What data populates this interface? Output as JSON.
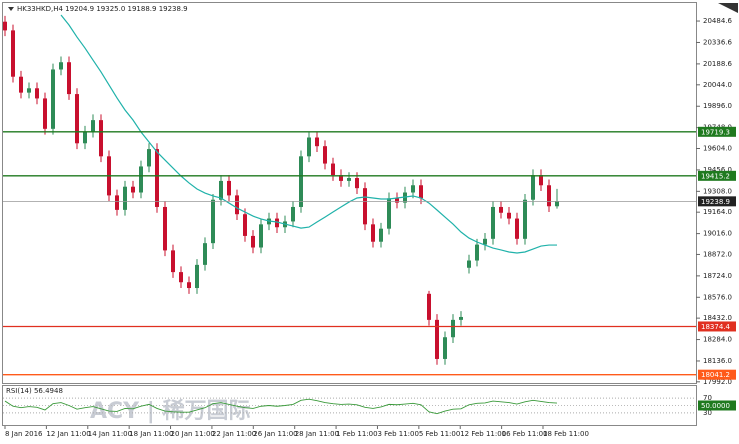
{
  "chart_data": {
    "type": "candlestick",
    "title": "HK33HKD,H4  19204.9 19325.0 19188.9 19238.9",
    "watermark": "ACY | 稀万国际",
    "up_color": "#2e8b57",
    "down_color": "#c8102e",
    "ylim": [
      17970,
      20630
    ],
    "yticks": [
      20484.6,
      20336.6,
      20188.6,
      {
        "value": 20044,
        "label": "20044.0"
      },
      {
        "value": 19896,
        "label": "19896.0"
      },
      {
        "value": 19748,
        "label": "19748.0"
      },
      {
        "value": 19604,
        "label": "19604.0"
      },
      {
        "value": 19456,
        "label": "19456.0"
      },
      {
        "value": 19308,
        "label": "19308.0"
      },
      {
        "value": 19164,
        "label": "19164.0"
      },
      {
        "value": 19016,
        "label": "19016.0"
      },
      {
        "value": 18872,
        "label": "18872.0"
      },
      {
        "value": 18724,
        "label": "18724.0"
      },
      {
        "value": 18576,
        "label": "18576.0"
      },
      {
        "value": 18432,
        "label": "18432.0"
      },
      {
        "value": 18284,
        "label": "18284.0"
      },
      {
        "value": 18136,
        "label": "18136.0"
      },
      {
        "value": 17992,
        "label": "17992.0"
      }
    ],
    "x_labels": [
      "8 Jan 2016",
      "12 Jan 11:00",
      "14 Jan 11:00",
      "18 Jan 11:00",
      "20 Jan 11:00",
      "22 Jan 11:00",
      "26 Jan 11:00",
      "28 Jan 11:00",
      "1 Feb 11:00",
      "3 Feb 11:00",
      "5 Feb 11:00",
      "12 Feb 11:00",
      "16 Feb 11:00",
      "18 Feb 11:00"
    ],
    "levels": [
      {
        "value": 19719.3,
        "color": "#1f7a1f"
      },
      {
        "value": 19415.2,
        "color": "#1f7a1f"
      },
      {
        "value": 19238.9,
        "color": "#999999",
        "box": "#222222"
      },
      {
        "value": 18374.4,
        "color": "#e03020"
      },
      {
        "value": 18041.2,
        "color": "#ff5a1a"
      }
    ],
    "candles": [
      [
        20480,
        20520,
        20380,
        20420
      ],
      [
        20420,
        20460,
        20060,
        20100
      ],
      [
        20100,
        20140,
        19950,
        19990
      ],
      [
        19990,
        20060,
        19950,
        20020
      ],
      [
        20020,
        20060,
        19910,
        19950
      ],
      [
        19950,
        19990,
        19700,
        19740
      ],
      [
        19740,
        20190,
        19700,
        20150
      ],
      [
        20150,
        20240,
        20110,
        20200
      ],
      [
        20200,
        20240,
        19940,
        19980
      ],
      [
        19980,
        20020,
        19600,
        19640
      ],
      [
        19640,
        19760,
        19600,
        19720
      ],
      [
        19720,
        19840,
        19680,
        19800
      ],
      [
        19800,
        19840,
        19510,
        19550
      ],
      [
        19550,
        19590,
        19240,
        19280
      ],
      [
        19280,
        19320,
        19140,
        19180
      ],
      [
        19180,
        19380,
        19140,
        19340
      ],
      [
        19340,
        19380,
        19260,
        19300
      ],
      [
        19300,
        19520,
        19260,
        19480
      ],
      [
        19480,
        19640,
        19440,
        19600
      ],
      [
        19600,
        19640,
        19160,
        19200
      ],
      [
        19200,
        19240,
        18860,
        18900
      ],
      [
        18900,
        18940,
        18710,
        18750
      ],
      [
        18750,
        18790,
        18640,
        18680
      ],
      [
        18680,
        18720,
        18600,
        18640
      ],
      [
        18640,
        18840,
        18600,
        18800
      ],
      [
        18800,
        18990,
        18760,
        18950
      ],
      [
        18950,
        19290,
        18910,
        19250
      ],
      [
        19250,
        19420,
        19210,
        19380
      ],
      [
        19380,
        19420,
        19240,
        19280
      ],
      [
        19280,
        19320,
        19110,
        19150
      ],
      [
        19150,
        19190,
        18960,
        19000
      ],
      [
        19000,
        19040,
        18880,
        18920
      ],
      [
        18920,
        19120,
        18880,
        19080
      ],
      [
        19080,
        19160,
        19040,
        19120
      ],
      [
        19120,
        19160,
        19020,
        19060
      ],
      [
        19060,
        19140,
        19020,
        19100
      ],
      [
        19100,
        19240,
        19060,
        19200
      ],
      [
        19200,
        19590,
        19160,
        19550
      ],
      [
        19550,
        19720,
        19510,
        19680
      ],
      [
        19680,
        19720,
        19580,
        19620
      ],
      [
        19620,
        19660,
        19460,
        19500
      ],
      [
        19500,
        19540,
        19380,
        19420
      ],
      [
        19420,
        19460,
        19340,
        19380
      ],
      [
        19380,
        19440,
        19340,
        19400
      ],
      [
        19400,
        19440,
        19290,
        19330
      ],
      [
        19330,
        19370,
        19040,
        19080
      ],
      [
        19080,
        19120,
        18920,
        18960
      ],
      [
        18960,
        19090,
        18920,
        19050
      ],
      [
        19050,
        19300,
        19010,
        19260
      ],
      [
        19260,
        19300,
        19190,
        19230
      ],
      [
        19230,
        19340,
        19190,
        19300
      ],
      [
        19300,
        19390,
        19260,
        19350
      ],
      [
        19350,
        19390,
        19220,
        19260
      ],
      [
        18600,
        18620,
        18380,
        18420
      ],
      [
        18420,
        18460,
        18110,
        18150
      ],
      [
        18150,
        18340,
        18110,
        18300
      ],
      [
        18300,
        18460,
        18260,
        18420
      ],
      [
        18420,
        18480,
        18380,
        18440
      ],
      [
        18780,
        18870,
        18740,
        18830
      ],
      [
        18830,
        18980,
        18790,
        18940
      ],
      [
        18940,
        19020,
        18900,
        18980
      ],
      [
        18980,
        19240,
        18940,
        19200
      ],
      [
        19200,
        19240,
        19120,
        19160
      ],
      [
        19160,
        19200,
        19080,
        19120
      ],
      [
        19120,
        19160,
        18940,
        18980
      ],
      [
        18980,
        19290,
        18940,
        19250
      ],
      [
        19250,
        19460,
        19210,
        19420
      ],
      [
        19420,
        19460,
        19310,
        19350
      ],
      [
        19350,
        19390,
        19165,
        19205
      ],
      [
        19204.9,
        19325.0,
        19188.9,
        19238.9
      ]
    ],
    "ma": {
      "color": "#20b2aa",
      "values": [
        null,
        null,
        null,
        null,
        null,
        null,
        null,
        20526,
        20457,
        20374,
        20298,
        20215,
        20133,
        20043,
        19953,
        19870,
        19801,
        19718,
        19649,
        19580,
        19524,
        19469,
        19414,
        19366,
        19324,
        19296,
        19276,
        19262,
        19227,
        19193,
        19165,
        19137,
        19117,
        19103,
        19096,
        19082,
        19068,
        19054,
        19061,
        19096,
        19130,
        19165,
        19200,
        19234,
        19262,
        19269,
        19262,
        19255,
        19255,
        19262,
        19269,
        19276,
        19262,
        19227,
        19179,
        19130,
        19082,
        19027,
        18985,
        18958,
        18937,
        18916,
        18903,
        18889,
        18882,
        18889,
        18909,
        18930,
        18937,
        18937
      ]
    },
    "rsi": {
      "title": "RSI(14) 56.4948",
      "color": "#3a9a3a",
      "ylim": [
        0,
        100
      ],
      "yticks": [
        70,
        30
      ],
      "level": {
        "value": 50,
        "label": "50.0000"
      },
      "values": [
        62,
        48,
        44,
        47,
        45,
        38,
        55,
        58,
        50,
        40,
        44,
        47,
        41,
        35,
        34,
        42,
        41,
        48,
        53,
        42,
        35,
        33,
        32,
        32,
        38,
        44,
        55,
        58,
        53,
        48,
        44,
        42,
        48,
        50,
        48,
        50,
        53,
        64,
        67,
        63,
        58,
        55,
        53,
        54,
        52,
        45,
        42,
        46,
        53,
        52,
        54,
        56,
        52,
        33,
        28,
        35,
        40,
        41,
        52,
        56,
        57,
        62,
        60,
        58,
        54,
        60,
        64,
        61,
        58,
        56.4948
      ]
    }
  }
}
